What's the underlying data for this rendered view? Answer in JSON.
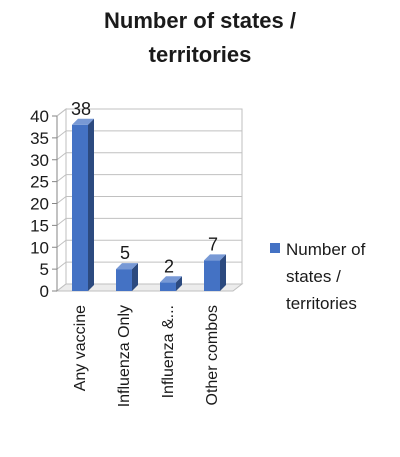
{
  "chart_data": {
    "type": "bar",
    "title_lines": [
      "Number of states /",
      "territories"
    ],
    "categories": [
      "Any vaccine",
      "Influenza Only",
      "Influenza &...",
      "Other combos"
    ],
    "series": [
      {
        "name": "Number of states / territories",
        "name_lines": [
          "Number of",
          "states /",
          "territories"
        ],
        "values": [
          38,
          5,
          2,
          7
        ],
        "color": "#4472c4"
      }
    ],
    "data_labels": [
      "38",
      "5",
      "2",
      "7"
    ],
    "yticks": [
      "0",
      "5",
      "10",
      "15",
      "20",
      "25",
      "30",
      "35",
      "40"
    ],
    "ylim": [
      0,
      40
    ],
    "grid": true,
    "legend_position": "right",
    "style": "3d-bar"
  }
}
